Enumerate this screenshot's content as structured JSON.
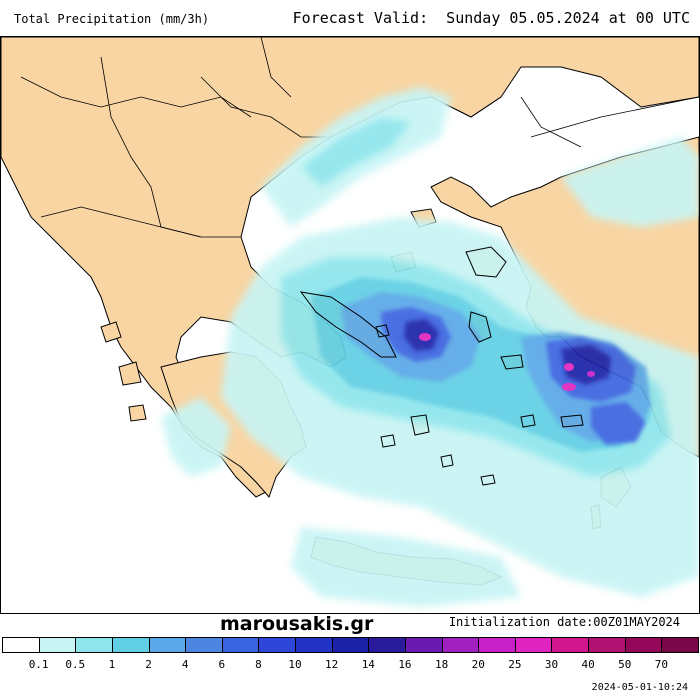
{
  "header": {
    "title": "Total Precipitation (mm/3h)",
    "forecast": "Forecast Valid:  Sunday 05.05.2024 at 00 UTC"
  },
  "footer": {
    "brand": "marousakis.gr",
    "initialization": "Initialization date:00Z01MAY2024",
    "generated": "2024-05-01-10:24"
  },
  "legend": {
    "levels": [
      "0.1",
      "0.5",
      "1",
      "2",
      "4",
      "6",
      "8",
      "10",
      "12",
      "14",
      "16",
      "18",
      "20",
      "25",
      "30",
      "40",
      "50",
      "70"
    ],
    "colors": [
      "#ffffff",
      "#c8f4f4",
      "#8ee6ec",
      "#60cfe4",
      "#5aa8e8",
      "#4d86e0",
      "#3a63e0",
      "#2d46d8",
      "#2233c4",
      "#1c22a8",
      "#2a1a9c",
      "#6a1ab0",
      "#a020c0",
      "#c820c8",
      "#e024c0",
      "#d0188c",
      "#b01070",
      "#94085a",
      "#7a0848"
    ]
  },
  "map": {
    "land_color": "#f8d5a3",
    "sea_color": "#ffffff",
    "border_color": "#000000"
  }
}
